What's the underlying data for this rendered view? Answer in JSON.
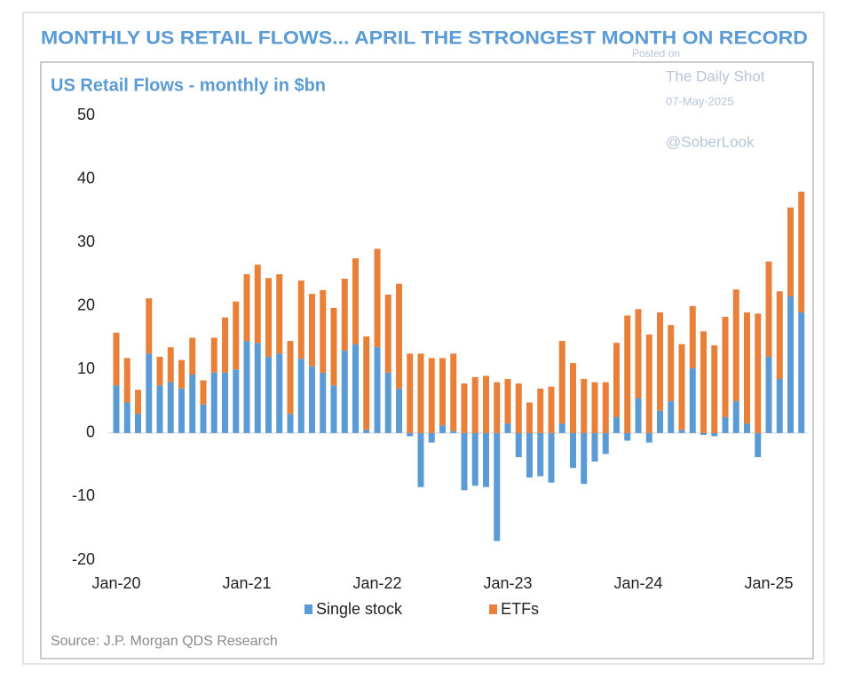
{
  "chart_data": {
    "type": "stacked_bar",
    "title": "MONTHLY US RETAIL FLOWS... APRIL THE STRONGEST MONTH ON RECORD",
    "subtitle": "US Retail Flows - monthly in $bn",
    "annotations": [
      "Posted on",
      "The Daily Shot",
      "07-May-2025",
      "@SoberLook"
    ],
    "source": "Source: J.P. Morgan QDS Research",
    "categories": [
      "Jan-20",
      null,
      null,
      null,
      null,
      null,
      null,
      null,
      null,
      null,
      null,
      null,
      "Jan-21",
      null,
      null,
      null,
      null,
      null,
      null,
      null,
      null,
      null,
      null,
      null,
      "Jan-22",
      null,
      null,
      null,
      null,
      null,
      null,
      null,
      null,
      null,
      null,
      null,
      "Jan-23",
      null,
      null,
      null,
      null,
      null,
      null,
      null,
      null,
      null,
      null,
      null,
      "Jan-24",
      null,
      null,
      null,
      null,
      null,
      null,
      null,
      null,
      null,
      null,
      null,
      "Jan-25",
      null,
      null,
      null
    ],
    "series": [
      {
        "name": "Single stock",
        "color": "#5b9bd5",
        "values": [
          7.5,
          4.8,
          3,
          12.5,
          7.5,
          8,
          7,
          9.2,
          4.5,
          9.5,
          9.5,
          10,
          14.5,
          14.2,
          12,
          12.5,
          3,
          11.7,
          10.5,
          9.5,
          7.5,
          13,
          14,
          0.5,
          13.5,
          9.5,
          7,
          -0.5,
          -8.5,
          -1.5,
          1.2,
          0.3,
          -9,
          -8.3,
          -8.5,
          -17,
          1.5,
          -3.8,
          -7,
          -6.8,
          -7.8,
          1.5,
          -5.5,
          -8,
          -4.5,
          -3.3,
          2.5,
          -1.2,
          5.5,
          -1.5,
          3.5,
          5,
          0.5,
          10.2,
          -0.3,
          -0.5,
          2.5,
          5,
          1.5,
          -3.8,
          12,
          8.5,
          21.5,
          19
        ]
      },
      {
        "name": "ETFs",
        "color": "#e8803a",
        "values": [
          8.3,
          7,
          3.8,
          8.7,
          4.5,
          5.5,
          4.5,
          5.8,
          3.8,
          5.5,
          8.7,
          10.7,
          10.5,
          12.3,
          12.4,
          12.5,
          11.5,
          12.3,
          11.4,
          13,
          12.2,
          11.3,
          13.5,
          14.7,
          15.5,
          12.3,
          16.5,
          12.5,
          12.5,
          11.8,
          10.6,
          12.2,
          7.8,
          8.8,
          9,
          8,
          7,
          7.8,
          4.8,
          7,
          7.3,
          13,
          11,
          8.5,
          8,
          8,
          11.7,
          18.5,
          14,
          15.5,
          15.5,
          12,
          13.5,
          9.8,
          16,
          13.8,
          15.8,
          17.6,
          17.5,
          18.8,
          15,
          13.8,
          14,
          19
        ]
      }
    ],
    "ylim": [
      -20,
      50
    ],
    "yticks": [
      -20,
      -10,
      0,
      10,
      20,
      30,
      40,
      50
    ],
    "grid": false,
    "legend": "bottom"
  }
}
